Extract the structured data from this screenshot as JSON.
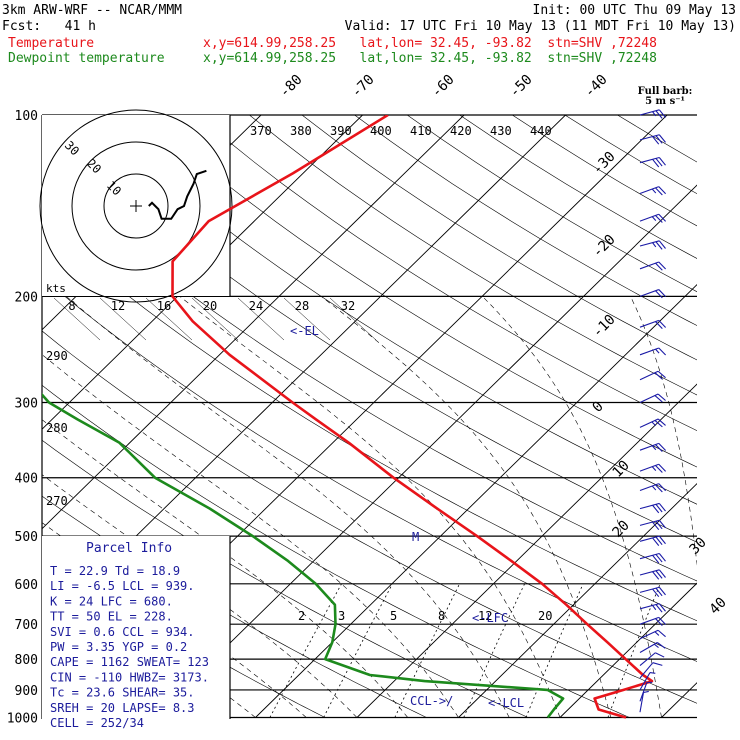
{
  "header": {
    "model": "3km ARW-WRF -- NCAR/MMM",
    "init": "Init: 00 UTC Thu 09 May 13",
    "fcst": "Fcst:   41 h",
    "valid": "Valid: 17 UTC Fri 10 May 13 (11 MDT Fri 10 May 13)",
    "temp_name": "Temperature",
    "temp_info": "x,y=614.99,258.25   lat,lon= 32.45, -93.82  stn=SHV ,72248",
    "dew_name": "Dewpoint temperature",
    "dew_info": "x,y=614.99,258.25   lat,lon= 32.45, -93.82  stn=SHV ,72248"
  },
  "barb_legend": {
    "line1": "Full barb:",
    "line2": "5 m s⁻¹"
  },
  "hodograph": {
    "units": "kts",
    "ring_labels": [
      "10",
      "20",
      "30"
    ],
    "speed_labels": [
      "8",
      "12",
      "16",
      "20",
      "24",
      "28",
      "32"
    ]
  },
  "parcel_info": {
    "title": "Parcel Info",
    "lines": [
      "T  =   22.9  Td =  18.9",
      "LI =   -6.5  LCL =  939.",
      "K  =     24  LFC =  680.",
      "TT =     50  EL  =  228.",
      "SVI =   0.6  CCL =  934.",
      "PW =   3.35  YGP =   0.2",
      "CAPE =  1162  SWEAT=  123",
      "CIN =   -110  HWBZ= 3173.",
      "Tc =   23.6  SHEAR=  35.",
      "SREH =   20  LAPSE=  8.3",
      "CELL = 252/34"
    ]
  },
  "annotations": {
    "el": "<-EL",
    "lfc": "<-LFC",
    "ccl": "CCL->/",
    "lcl": "<-LCL",
    "m": "M"
  },
  "colors": {
    "temperature": "#e8141a",
    "dewpoint": "#1d8a1d",
    "axes": "#000000",
    "annot": "#1c1c9c",
    "barbs": "#1a1aa6"
  },
  "chart_data": {
    "type": "line",
    "title": "",
    "ylabel": "",
    "xlabel": "",
    "y_scale": "log pressure (hPa)",
    "pressure_ticks": [
      100,
      200,
      300,
      400,
      500,
      600,
      700,
      800,
      900,
      1000
    ],
    "isotherm_labels": [
      "-80",
      "-70",
      "-60",
      "-50",
      "-40",
      "-30",
      "-20",
      "-10",
      "0",
      "10",
      "20",
      "30",
      "40"
    ],
    "theta_labels": [
      "370",
      "380",
      "390",
      "400",
      "410",
      "420",
      "430",
      "440"
    ],
    "theta_left_labels": [
      "290",
      "280",
      "270"
    ],
    "mixing_ratio_labels": [
      "2",
      "3",
      "5",
      "8",
      "12",
      "20"
    ],
    "series": [
      {
        "name": "Temperature",
        "pressure": [
          1000,
          970,
          930,
          900,
          870,
          850,
          800,
          750,
          700,
          650,
          600,
          550,
          500,
          450,
          400,
          350,
          320,
          300,
          250,
          220,
          200,
          175,
          150,
          125,
          100
        ],
        "temp_c": [
          26.5,
          23.0,
          21.5,
          23.5,
          25.4,
          23.9,
          20.6,
          17.1,
          13.3,
          9.3,
          4.8,
          -0.5,
          -6.4,
          -13.1,
          -20.5,
          -28.4,
          -34.0,
          -38.0,
          -49.0,
          -56.0,
          -60.5,
          -64.0,
          -64.5,
          -61.0,
          -57.5
        ]
      },
      {
        "name": "Dewpoint temperature",
        "pressure": [
          1000,
          970,
          930,
          900,
          870,
          850,
          800,
          750,
          700,
          650,
          600,
          550,
          500,
          450,
          400,
          350,
          320,
          300,
          250,
          220,
          200,
          175,
          150,
          125,
          100
        ],
        "temp_c": [
          18.8,
          18.6,
          18.4,
          16.0,
          3.0,
          -3.0,
          -9.0,
          -10.0,
          -11.5,
          -13.5,
          -17.5,
          -22.5,
          -28.5,
          -35.5,
          -44.0,
          -51.0,
          -57.5,
          -62.0,
          -71.0,
          -77.0,
          -80.0,
          -83.0,
          -90.0,
          -96.0,
          -103.0
        ]
      }
    ],
    "hodograph_uv_kts": [
      [
        4,
        0
      ],
      [
        5,
        1
      ],
      [
        6,
        0
      ],
      [
        7,
        -1
      ],
      [
        8,
        -4
      ],
      [
        11,
        -4
      ],
      [
        13,
        -1
      ],
      [
        15,
        0
      ],
      [
        16,
        3
      ],
      [
        17,
        5
      ],
      [
        18,
        7
      ],
      [
        19,
        10
      ],
      [
        22,
        11
      ]
    ],
    "wind_barbs": [
      {
        "p": 100,
        "dir": 255,
        "kts": 28
      },
      {
        "p": 110,
        "dir": 255,
        "kts": 30
      },
      {
        "p": 120,
        "dir": 255,
        "kts": 30
      },
      {
        "p": 135,
        "dir": 250,
        "kts": 28
      },
      {
        "p": 150,
        "dir": 250,
        "kts": 28
      },
      {
        "p": 165,
        "dir": 255,
        "kts": 26
      },
      {
        "p": 180,
        "dir": 250,
        "kts": 22
      },
      {
        "p": 200,
        "dir": 250,
        "kts": 20
      },
      {
        "p": 225,
        "dir": 250,
        "kts": 20
      },
      {
        "p": 250,
        "dir": 250,
        "kts": 18
      },
      {
        "p": 275,
        "dir": 245,
        "kts": 22
      },
      {
        "p": 300,
        "dir": 245,
        "kts": 22
      },
      {
        "p": 330,
        "dir": 245,
        "kts": 24
      },
      {
        "p": 360,
        "dir": 250,
        "kts": 25
      },
      {
        "p": 390,
        "dir": 250,
        "kts": 26
      },
      {
        "p": 420,
        "dir": 250,
        "kts": 26
      },
      {
        "p": 450,
        "dir": 255,
        "kts": 30
      },
      {
        "p": 480,
        "dir": 255,
        "kts": 32
      },
      {
        "p": 510,
        "dir": 255,
        "kts": 32
      },
      {
        "p": 545,
        "dir": 255,
        "kts": 32
      },
      {
        "p": 580,
        "dir": 255,
        "kts": 30
      },
      {
        "p": 620,
        "dir": 255,
        "kts": 30
      },
      {
        "p": 660,
        "dir": 255,
        "kts": 28
      },
      {
        "p": 700,
        "dir": 250,
        "kts": 22
      },
      {
        "p": 740,
        "dir": 245,
        "kts": 18
      },
      {
        "p": 780,
        "dir": 240,
        "kts": 14
      },
      {
        "p": 820,
        "dir": 230,
        "kts": 12
      },
      {
        "p": 860,
        "dir": 220,
        "kts": 10
      },
      {
        "p": 900,
        "dir": 210,
        "kts": 8
      },
      {
        "p": 940,
        "dir": 200,
        "kts": 8
      },
      {
        "p": 980,
        "dir": 190,
        "kts": 6
      }
    ]
  }
}
